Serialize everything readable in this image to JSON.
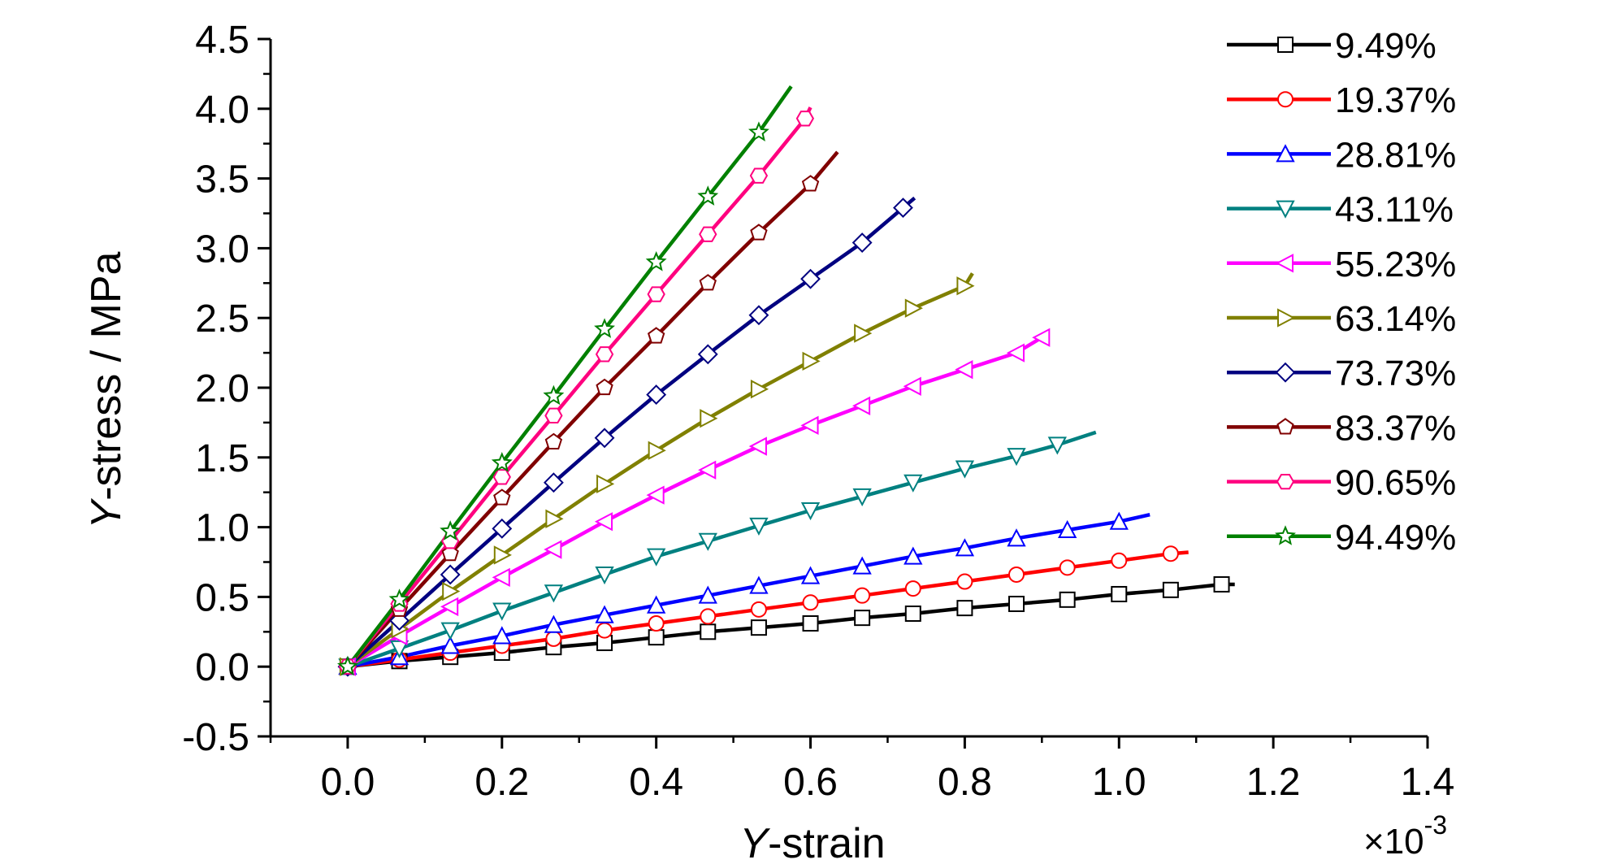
{
  "chart_data": {
    "type": "line",
    "xlabel_italic": "Y",
    "xlabel_rest": "-strain",
    "ylabel_italic": "Y",
    "ylabel_rest": "-stress / MPa",
    "x_multiplier_base": "×10",
    "x_multiplier_exp": "-3",
    "xlim": [
      -0.1,
      1.4
    ],
    "ylim": [
      -0.5,
      4.5
    ],
    "xticks": [
      "0.0",
      "0.2",
      "0.4",
      "0.6",
      "0.8",
      "1.0",
      "1.2",
      "1.4"
    ],
    "yticks": [
      "-0.5",
      "0.0",
      "0.5",
      "1.0",
      "1.5",
      "2.0",
      "2.5",
      "3.0",
      "3.5",
      "4.0",
      "4.5"
    ],
    "legend_position": "top-right",
    "series": [
      {
        "name": "9.49%",
        "color": "#000000",
        "marker": "square",
        "x_end": 1.15,
        "y_end": 0.59,
        "points": [
          [
            0,
            0
          ],
          [
            0.067,
            0.04
          ],
          [
            0.133,
            0.07
          ],
          [
            0.2,
            0.1
          ],
          [
            0.267,
            0.14
          ],
          [
            0.333,
            0.17
          ],
          [
            0.4,
            0.21
          ],
          [
            0.467,
            0.25
          ],
          [
            0.533,
            0.28
          ],
          [
            0.6,
            0.31
          ],
          [
            0.667,
            0.35
          ],
          [
            0.733,
            0.38
          ],
          [
            0.8,
            0.42
          ],
          [
            0.867,
            0.45
          ],
          [
            0.933,
            0.48
          ],
          [
            1.0,
            0.52
          ],
          [
            1.067,
            0.55
          ],
          [
            1.133,
            0.59
          ]
        ]
      },
      {
        "name": "19.37%",
        "color": "#ff0000",
        "marker": "circle",
        "x_end": 1.09,
        "y_end": 0.82,
        "points": [
          [
            0,
            0
          ],
          [
            0.067,
            0.05
          ],
          [
            0.133,
            0.1
          ],
          [
            0.2,
            0.15
          ],
          [
            0.267,
            0.2
          ],
          [
            0.333,
            0.26
          ],
          [
            0.4,
            0.31
          ],
          [
            0.467,
            0.36
          ],
          [
            0.533,
            0.41
          ],
          [
            0.6,
            0.46
          ],
          [
            0.667,
            0.51
          ],
          [
            0.733,
            0.56
          ],
          [
            0.8,
            0.61
          ],
          [
            0.867,
            0.66
          ],
          [
            0.933,
            0.71
          ],
          [
            1.0,
            0.76
          ],
          [
            1.067,
            0.81
          ]
        ]
      },
      {
        "name": "28.81%",
        "color": "#0000ff",
        "marker": "triangle-up",
        "x_end": 1.04,
        "y_end": 1.09,
        "points": [
          [
            0,
            0
          ],
          [
            0.067,
            0.07
          ],
          [
            0.133,
            0.15
          ],
          [
            0.2,
            0.22
          ],
          [
            0.267,
            0.3
          ],
          [
            0.333,
            0.37
          ],
          [
            0.4,
            0.44
          ],
          [
            0.467,
            0.51
          ],
          [
            0.533,
            0.58
          ],
          [
            0.6,
            0.65
          ],
          [
            0.667,
            0.72
          ],
          [
            0.733,
            0.79
          ],
          [
            0.8,
            0.85
          ],
          [
            0.867,
            0.92
          ],
          [
            0.933,
            0.98
          ],
          [
            1.0,
            1.04
          ]
        ]
      },
      {
        "name": "43.11%",
        "color": "#008080",
        "marker": "triangle-down",
        "x_end": 0.97,
        "y_end": 1.68,
        "points": [
          [
            0,
            0
          ],
          [
            0.067,
            0.13
          ],
          [
            0.133,
            0.26
          ],
          [
            0.2,
            0.4
          ],
          [
            0.267,
            0.53
          ],
          [
            0.333,
            0.66
          ],
          [
            0.4,
            0.79
          ],
          [
            0.467,
            0.9
          ],
          [
            0.533,
            1.01
          ],
          [
            0.6,
            1.12
          ],
          [
            0.667,
            1.22
          ],
          [
            0.733,
            1.32
          ],
          [
            0.8,
            1.42
          ],
          [
            0.867,
            1.51
          ],
          [
            0.92,
            1.59
          ]
        ]
      },
      {
        "name": "55.23%",
        "color": "#ff00ff",
        "marker": "triangle-left",
        "x_end": 0.9,
        "y_end": 2.37,
        "points": [
          [
            0,
            0
          ],
          [
            0.067,
            0.22
          ],
          [
            0.133,
            0.43
          ],
          [
            0.2,
            0.64
          ],
          [
            0.267,
            0.84
          ],
          [
            0.333,
            1.04
          ],
          [
            0.4,
            1.23
          ],
          [
            0.467,
            1.41
          ],
          [
            0.533,
            1.58
          ],
          [
            0.6,
            1.73
          ],
          [
            0.667,
            1.87
          ],
          [
            0.733,
            2.01
          ],
          [
            0.8,
            2.13
          ],
          [
            0.867,
            2.25
          ],
          [
            0.9,
            2.36
          ]
        ]
      },
      {
        "name": "63.14%",
        "color": "#808000",
        "marker": "triangle-right",
        "x_end": 0.81,
        "y_end": 2.82,
        "points": [
          [
            0,
            0
          ],
          [
            0.067,
            0.27
          ],
          [
            0.133,
            0.54
          ],
          [
            0.2,
            0.8
          ],
          [
            0.267,
            1.06
          ],
          [
            0.333,
            1.31
          ],
          [
            0.4,
            1.55
          ],
          [
            0.467,
            1.78
          ],
          [
            0.533,
            1.99
          ],
          [
            0.6,
            2.19
          ],
          [
            0.667,
            2.39
          ],
          [
            0.733,
            2.57
          ],
          [
            0.8,
            2.73
          ]
        ]
      },
      {
        "name": "73.73%",
        "color": "#000080",
        "marker": "diamond",
        "x_end": 0.735,
        "y_end": 3.36,
        "points": [
          [
            0,
            0
          ],
          [
            0.067,
            0.33
          ],
          [
            0.133,
            0.66
          ],
          [
            0.2,
            0.99
          ],
          [
            0.267,
            1.32
          ],
          [
            0.333,
            1.64
          ],
          [
            0.4,
            1.95
          ],
          [
            0.467,
            2.24
          ],
          [
            0.533,
            2.52
          ],
          [
            0.6,
            2.78
          ],
          [
            0.667,
            3.04
          ],
          [
            0.72,
            3.29
          ]
        ]
      },
      {
        "name": "83.37%",
        "color": "#800000",
        "marker": "pentagon",
        "x_end": 0.635,
        "y_end": 3.69,
        "points": [
          [
            0,
            0
          ],
          [
            0.067,
            0.41
          ],
          [
            0.133,
            0.81
          ],
          [
            0.2,
            1.21
          ],
          [
            0.267,
            1.61
          ],
          [
            0.333,
            2.0
          ],
          [
            0.4,
            2.37
          ],
          [
            0.467,
            2.75
          ],
          [
            0.533,
            3.11
          ],
          [
            0.6,
            3.46
          ]
        ]
      },
      {
        "name": "90.65%",
        "color": "#ff007f",
        "marker": "hexagon",
        "x_end": 0.6,
        "y_end": 4.01,
        "points": [
          [
            0,
            0
          ],
          [
            0.067,
            0.45
          ],
          [
            0.133,
            0.9
          ],
          [
            0.2,
            1.36
          ],
          [
            0.267,
            1.8
          ],
          [
            0.333,
            2.24
          ],
          [
            0.4,
            2.67
          ],
          [
            0.467,
            3.1
          ],
          [
            0.533,
            3.52
          ],
          [
            0.593,
            3.93
          ]
        ]
      },
      {
        "name": "94.49%",
        "color": "#008000",
        "marker": "star",
        "x_end": 0.575,
        "y_end": 4.16,
        "points": [
          [
            0,
            0
          ],
          [
            0.067,
            0.48
          ],
          [
            0.133,
            0.97
          ],
          [
            0.2,
            1.46
          ],
          [
            0.267,
            1.94
          ],
          [
            0.333,
            2.42
          ],
          [
            0.4,
            2.9
          ],
          [
            0.467,
            3.37
          ],
          [
            0.533,
            3.83
          ]
        ]
      }
    ]
  }
}
